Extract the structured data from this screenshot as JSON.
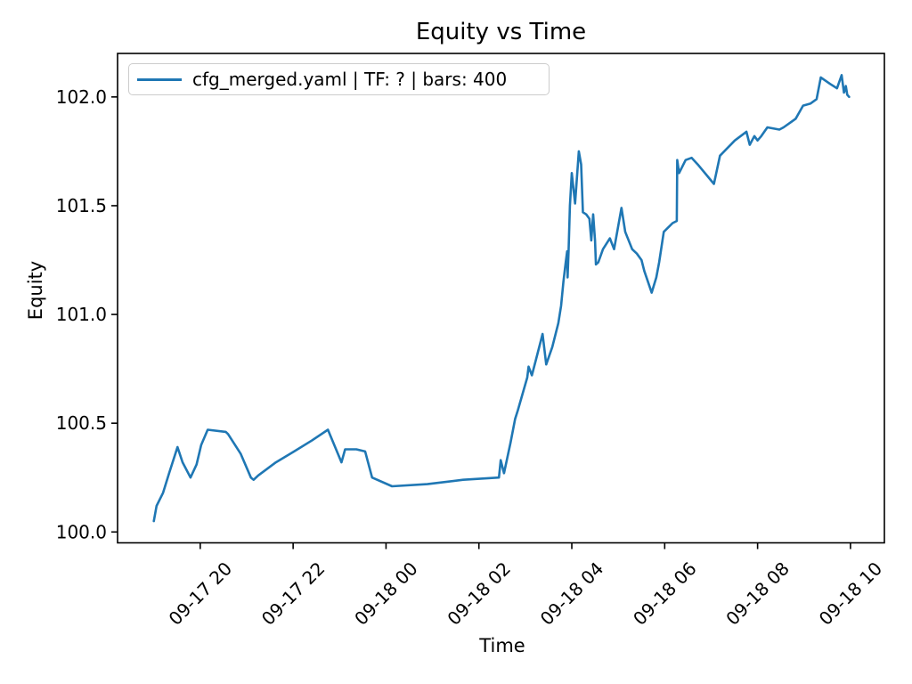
{
  "chart_data": {
    "type": "line",
    "title": "Equity vs Time",
    "xlabel": "Time",
    "ylabel": "Equity",
    "legend": [
      "cfg_merged.yaml | TF: ? | bars: 400"
    ],
    "legend_position": "upper left",
    "grid": false,
    "line_color": "#1f77b4",
    "x_axis": {
      "unit": "hours since 09-17 19:00",
      "lim": [
        -0.78,
        15.73
      ],
      "ticks": [
        {
          "h": 1,
          "label": "09-17 20"
        },
        {
          "h": 3,
          "label": "09-17 22"
        },
        {
          "h": 5,
          "label": "09-18 00"
        },
        {
          "h": 7,
          "label": "09-18 02"
        },
        {
          "h": 9,
          "label": "09-18 04"
        },
        {
          "h": 11,
          "label": "09-18 06"
        },
        {
          "h": 13,
          "label": "09-18 08"
        },
        {
          "h": 15,
          "label": "09-18 10"
        }
      ],
      "tick_rotation_deg": 45
    },
    "y_axis": {
      "lim": [
        99.95,
        102.2
      ],
      "ticks": [
        100.0,
        100.5,
        101.0,
        101.5,
        102.0
      ]
    },
    "series": [
      {
        "name": "cfg_merged.yaml | TF: ? | bars: 400",
        "color": "#1f77b4",
        "points": [
          [
            0.0,
            100.05
          ],
          [
            0.06,
            100.12
          ],
          [
            0.2,
            100.18
          ],
          [
            0.33,
            100.27
          ],
          [
            0.51,
            100.39
          ],
          [
            0.62,
            100.32
          ],
          [
            0.79,
            100.25
          ],
          [
            0.92,
            100.31
          ],
          [
            1.02,
            100.4
          ],
          [
            1.16,
            100.47
          ],
          [
            1.55,
            100.46
          ],
          [
            1.6,
            100.45
          ],
          [
            1.87,
            100.36
          ],
          [
            2.09,
            100.25
          ],
          [
            2.15,
            100.24
          ],
          [
            2.25,
            100.26
          ],
          [
            2.63,
            100.32
          ],
          [
            3.02,
            100.37
          ],
          [
            3.4,
            100.42
          ],
          [
            3.75,
            100.47
          ],
          [
            4.04,
            100.32
          ],
          [
            4.12,
            100.38
          ],
          [
            4.36,
            100.38
          ],
          [
            4.55,
            100.37
          ],
          [
            4.7,
            100.25
          ],
          [
            5.13,
            100.21
          ],
          [
            5.89,
            100.22
          ],
          [
            6.66,
            100.24
          ],
          [
            7.43,
            100.25
          ],
          [
            7.47,
            100.33
          ],
          [
            7.54,
            100.27
          ],
          [
            7.68,
            100.41
          ],
          [
            7.78,
            100.52
          ],
          [
            7.84,
            100.56
          ],
          [
            8.04,
            100.71
          ],
          [
            8.07,
            100.76
          ],
          [
            8.14,
            100.72
          ],
          [
            8.25,
            100.81
          ],
          [
            8.37,
            100.91
          ],
          [
            8.45,
            100.77
          ],
          [
            8.58,
            100.85
          ],
          [
            8.71,
            100.96
          ],
          [
            8.77,
            101.04
          ],
          [
            8.82,
            101.15
          ],
          [
            8.87,
            101.24
          ],
          [
            8.9,
            101.29
          ],
          [
            8.91,
            101.17
          ],
          [
            8.93,
            101.29
          ],
          [
            8.96,
            101.5
          ],
          [
            9.0,
            101.65
          ],
          [
            9.07,
            101.51
          ],
          [
            9.15,
            101.75
          ],
          [
            9.2,
            101.69
          ],
          [
            9.24,
            101.47
          ],
          [
            9.31,
            101.46
          ],
          [
            9.38,
            101.44
          ],
          [
            9.42,
            101.34
          ],
          [
            9.46,
            101.46
          ],
          [
            9.5,
            101.34
          ],
          [
            9.52,
            101.23
          ],
          [
            9.57,
            101.24
          ],
          [
            9.67,
            101.3
          ],
          [
            9.82,
            101.35
          ],
          [
            9.91,
            101.3
          ],
          [
            10.07,
            101.49
          ],
          [
            10.15,
            101.38
          ],
          [
            10.3,
            101.3
          ],
          [
            10.4,
            101.28
          ],
          [
            10.5,
            101.25
          ],
          [
            10.56,
            101.2
          ],
          [
            10.72,
            101.1
          ],
          [
            10.82,
            101.17
          ],
          [
            10.88,
            101.24
          ],
          [
            10.98,
            101.38
          ],
          [
            11.17,
            101.42
          ],
          [
            11.26,
            101.43
          ],
          [
            11.27,
            101.71
          ],
          [
            11.31,
            101.65
          ],
          [
            11.45,
            101.71
          ],
          [
            11.58,
            101.72
          ],
          [
            11.71,
            101.69
          ],
          [
            12.06,
            101.6
          ],
          [
            12.19,
            101.73
          ],
          [
            12.51,
            101.8
          ],
          [
            12.76,
            101.84
          ],
          [
            12.83,
            101.78
          ],
          [
            12.93,
            101.82
          ],
          [
            13.0,
            101.8
          ],
          [
            13.08,
            101.82
          ],
          [
            13.21,
            101.86
          ],
          [
            13.47,
            101.85
          ],
          [
            13.56,
            101.86
          ],
          [
            13.69,
            101.88
          ],
          [
            13.82,
            101.9
          ],
          [
            13.98,
            101.96
          ],
          [
            14.14,
            101.97
          ],
          [
            14.27,
            101.99
          ],
          [
            14.36,
            102.09
          ],
          [
            14.56,
            102.06
          ],
          [
            14.71,
            102.04
          ],
          [
            14.81,
            102.1
          ],
          [
            14.86,
            102.02
          ],
          [
            14.9,
            102.05
          ],
          [
            14.93,
            102.01
          ],
          [
            14.97,
            102.0
          ]
        ]
      }
    ]
  }
}
